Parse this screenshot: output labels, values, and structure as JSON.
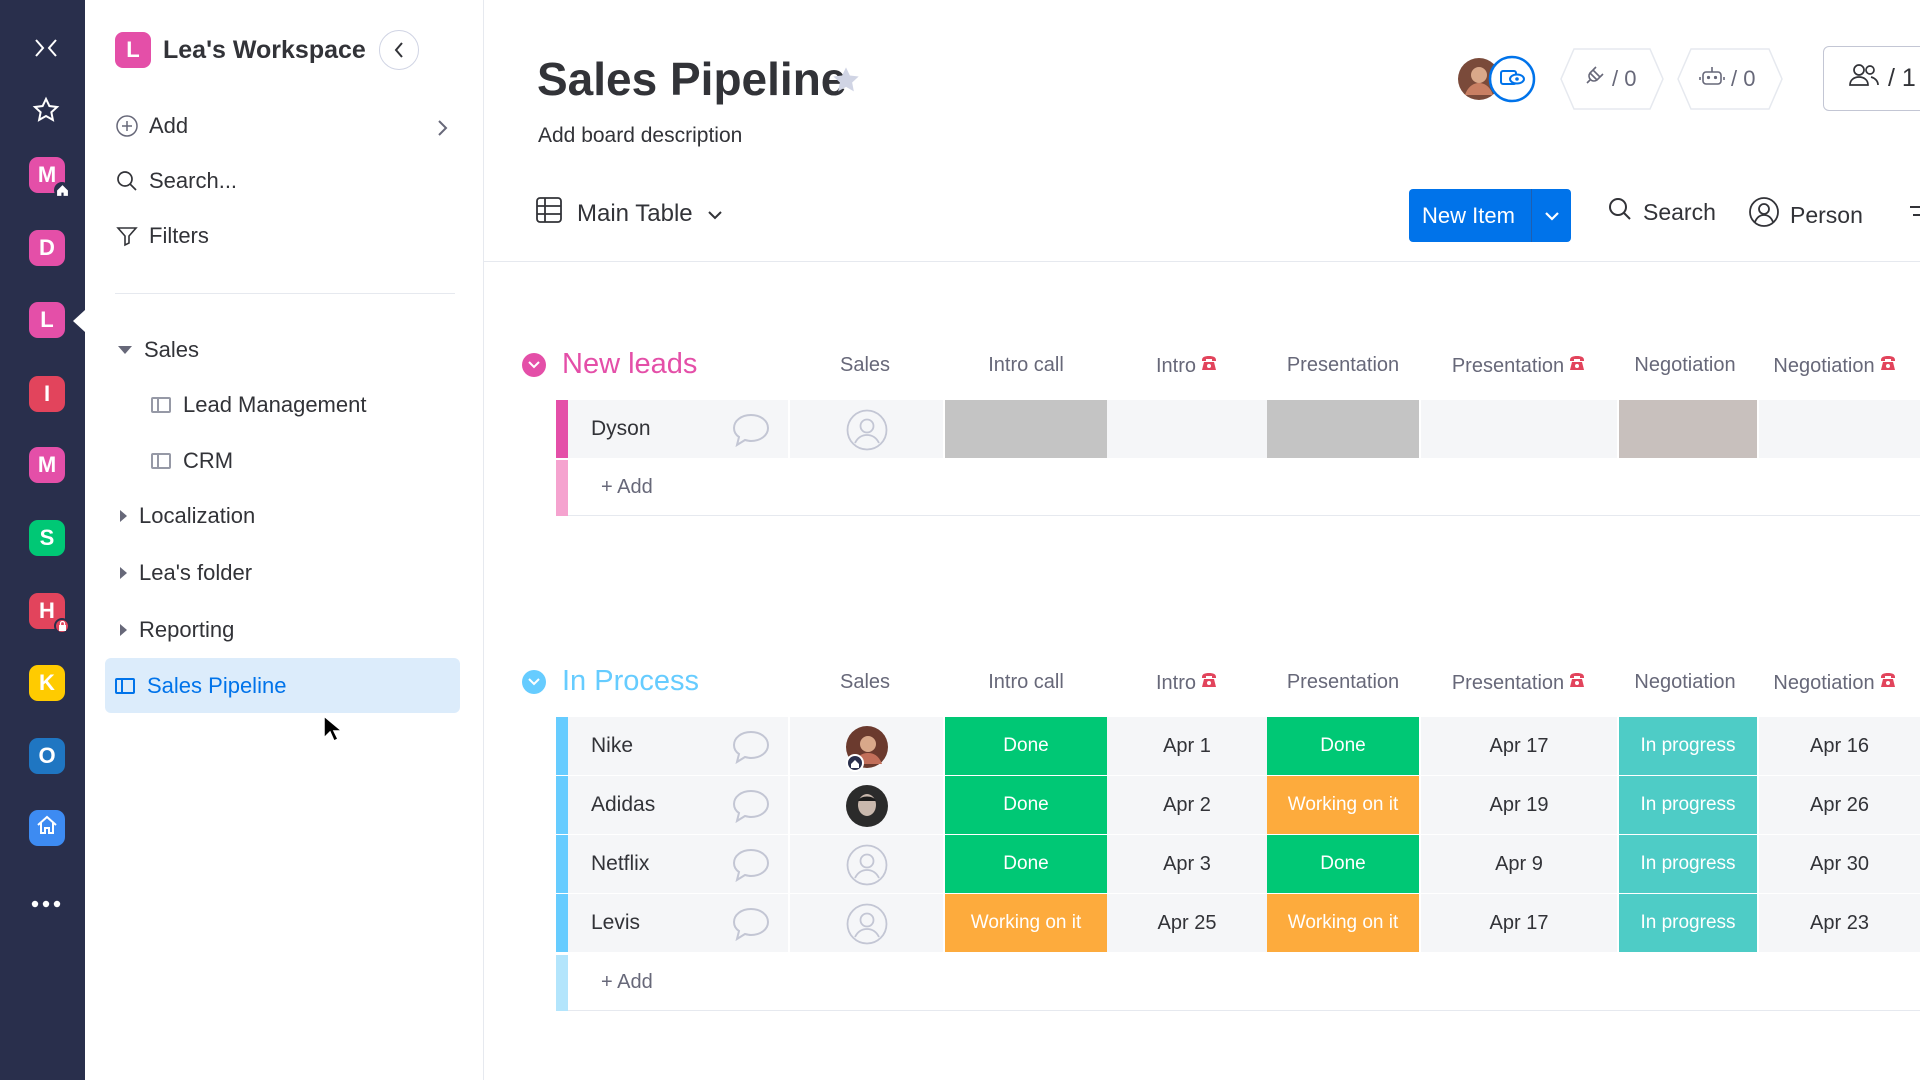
{
  "colors": {
    "rail_bg": "#292f4c",
    "primary": "#0073ea",
    "new_leads": "#e2445c",
    "new_leads_title": "#e44fa8",
    "in_process": "#66ccff",
    "status_done": "#00c875",
    "status_working": "#fdab3d",
    "status_in_progress": "#4eccc6",
    "status_empty": "#c4c4c4"
  },
  "rail": {
    "tiles": [
      {
        "letter": "M",
        "color": "#e44fa8",
        "badge": "home-icon"
      },
      {
        "letter": "D",
        "color": "#e44fa8"
      },
      {
        "letter": "L",
        "color": "#e44fa8"
      },
      {
        "letter": "I",
        "color": "#e2445c"
      },
      {
        "letter": "M",
        "color": "#e44fa8"
      },
      {
        "letter": "S",
        "color": "#00c875"
      },
      {
        "letter": "H",
        "color": "#e2445c",
        "badge": "lock-icon"
      },
      {
        "letter": "K",
        "color": "#ffcb00"
      },
      {
        "letter": "O",
        "color": "#1f76c2"
      }
    ]
  },
  "sidebar": {
    "workspace_letter": "L",
    "workspace_name": "Lea's Workspace",
    "add_label": "Add",
    "search_label": "Search...",
    "filters_label": "Filters",
    "tree": {
      "sales": "Sales",
      "lead_management": "Lead Management",
      "crm": "CRM",
      "localization": "Localization",
      "leas_folder": "Lea's folder",
      "reporting": "Reporting",
      "sales_pipeline": "Sales Pipeline"
    }
  },
  "header": {
    "title": "Sales Pipeline",
    "description": "Add board description",
    "integrations_count": "/ 0",
    "automations_count": "/ 0",
    "members_count": "/ 1",
    "view_name": "Main Table",
    "new_item_label": "New Item",
    "search_label": "Search",
    "person_label": "Person"
  },
  "columns": {
    "sales": "Sales",
    "intro_call": "Intro call",
    "intro": "Intro",
    "presentation": "Presentation",
    "presentation_date": "Presentation",
    "negotiation": "Negotiation",
    "negotiation_date": "Negotiation"
  },
  "groups": {
    "new_leads": {
      "title": "New leads",
      "add_label": "+ Add",
      "rows": [
        {
          "name": "Dyson"
        }
      ]
    },
    "in_process": {
      "title": "In Process",
      "add_label": "+ Add",
      "rows": [
        {
          "name": "Nike",
          "intro_call": "Done",
          "intro": "Apr 1",
          "presentation": "Done",
          "presentation_date": "Apr 17",
          "negotiation": "In progress",
          "negotiation_date": "Apr 16"
        },
        {
          "name": "Adidas",
          "intro_call": "Done",
          "intro": "Apr 2",
          "presentation": "Working on it",
          "presentation_date": "Apr 19",
          "negotiation": "In progress",
          "negotiation_date": "Apr 26"
        },
        {
          "name": "Netflix",
          "intro_call": "Done",
          "intro": "Apr 3",
          "presentation": "Done",
          "presentation_date": "Apr 9",
          "negotiation": "In progress",
          "negotiation_date": "Apr 30"
        },
        {
          "name": "Levis",
          "intro_call": "Working on it",
          "intro": "Apr 25",
          "presentation": "Working on it",
          "presentation_date": "Apr 17",
          "negotiation": "In progress",
          "negotiation_date": "Apr 23"
        }
      ]
    }
  }
}
